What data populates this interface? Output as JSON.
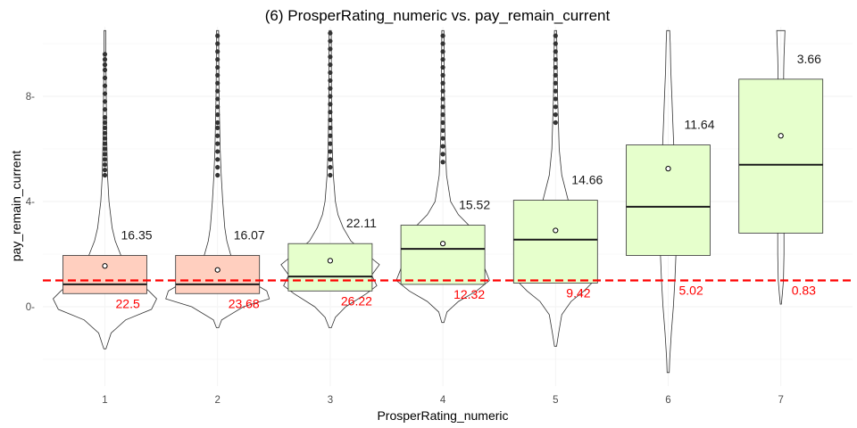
{
  "chart_data": {
    "type": "box",
    "title": "(6) ProsperRating_numeric vs. pay_remain_current",
    "xlabel": "ProsperRating_numeric",
    "ylabel": "pay_remain_current",
    "categories": [
      "1",
      "2",
      "3",
      "4",
      "5",
      "6",
      "7"
    ],
    "ylim": [
      -3.9,
      10.5
    ],
    "y_ticks": [
      0,
      4,
      8
    ],
    "y_tick_labels": [
      "0-",
      "4-",
      "8-"
    ],
    "reference_line": {
      "y": 1.0,
      "color": "#ff0000",
      "style": "dashed"
    },
    "colors": {
      "below_ref": "#ffcfbf",
      "above_ref": "#e6ffcc",
      "text_top": "#1a1a1a",
      "text_bottom": "#ff0000"
    },
    "boxes": [
      {
        "x": "1",
        "q1": 0.5,
        "median": 0.85,
        "q3": 1.95,
        "mean": 1.55,
        "fill": "below_ref",
        "top_label": "16.35",
        "bottom_label": "22.5",
        "violin": [
          [
            -1.6,
            0.02
          ],
          [
            -1.0,
            0.12
          ],
          [
            -0.5,
            0.4
          ],
          [
            -0.1,
            0.9
          ],
          [
            0.3,
            1.0
          ],
          [
            0.6,
            0.85
          ],
          [
            1.0,
            0.6
          ],
          [
            1.5,
            0.42
          ],
          [
            2.0,
            0.3
          ],
          [
            2.5,
            0.2
          ],
          [
            3.0,
            0.14
          ],
          [
            4.0,
            0.08
          ],
          [
            5.0,
            0.05
          ],
          [
            6.5,
            0.035
          ],
          [
            8.0,
            0.025
          ],
          [
            9.0,
            0.02
          ],
          [
            10.5,
            0.018
          ]
        ],
        "outliers": [
          5.0,
          5.2,
          5.4,
          5.6,
          5.8,
          6.0,
          6.2,
          6.4,
          6.6,
          6.8,
          7.0,
          7.2,
          7.5,
          7.8,
          8.1,
          8.4,
          8.7,
          9.0,
          9.2,
          9.4,
          9.6
        ]
      },
      {
        "x": "2",
        "q1": 0.5,
        "median": 0.85,
        "q3": 1.95,
        "mean": 1.4,
        "fill": "below_ref",
        "top_label": "16.07",
        "bottom_label": "23.68",
        "violin": [
          [
            -0.8,
            0.02
          ],
          [
            -0.5,
            0.08
          ],
          [
            0.0,
            0.5
          ],
          [
            0.3,
            1.0
          ],
          [
            0.6,
            0.95
          ],
          [
            1.0,
            0.6
          ],
          [
            1.5,
            0.35
          ],
          [
            2.0,
            0.25
          ],
          [
            2.5,
            0.18
          ],
          [
            3.0,
            0.14
          ],
          [
            4.0,
            0.1
          ],
          [
            5.0,
            0.07
          ],
          [
            6.0,
            0.05
          ],
          [
            7.0,
            0.04
          ],
          [
            8.0,
            0.03
          ],
          [
            9.0,
            0.025
          ],
          [
            10.5,
            0.02
          ]
        ],
        "outliers": [
          5.0,
          5.3,
          5.6,
          5.9,
          6.2,
          6.5,
          6.8,
          7.0,
          7.3,
          7.6,
          7.9,
          8.2,
          8.5,
          8.8,
          9.1,
          9.4,
          9.7,
          10.0,
          10.3
        ]
      },
      {
        "x": "3",
        "q1": 0.6,
        "median": 1.15,
        "q3": 2.4,
        "mean": 1.75,
        "fill": "above_ref",
        "top_label": "22.11",
        "bottom_label": "26.22",
        "violin": [
          [
            -0.8,
            0.02
          ],
          [
            -0.4,
            0.1
          ],
          [
            0.0,
            0.3
          ],
          [
            0.5,
            0.7
          ],
          [
            0.8,
            0.9
          ],
          [
            1.2,
            0.8
          ],
          [
            1.6,
            0.95
          ],
          [
            2.0,
            0.7
          ],
          [
            2.5,
            0.4
          ],
          [
            3.0,
            0.25
          ],
          [
            3.5,
            0.15
          ],
          [
            4.0,
            0.1
          ],
          [
            5.0,
            0.06
          ],
          [
            6.0,
            0.04
          ],
          [
            8.0,
            0.025
          ],
          [
            10.5,
            0.02
          ]
        ],
        "outliers": [
          5.0,
          5.3,
          5.6,
          5.9,
          6.2,
          6.5,
          6.8,
          7.1,
          7.4,
          7.7,
          8.0,
          8.3,
          8.6,
          8.9,
          9.2,
          9.5,
          9.8,
          10.1,
          10.4
        ]
      },
      {
        "x": "4",
        "q1": 0.85,
        "median": 2.2,
        "q3": 3.1,
        "mean": 2.4,
        "fill": "above_ref",
        "top_label": "15.52",
        "bottom_label": "12.32",
        "violin": [
          [
            -0.6,
            0.02
          ],
          [
            -0.2,
            0.08
          ],
          [
            0.2,
            0.3
          ],
          [
            0.6,
            0.65
          ],
          [
            1.0,
            0.9
          ],
          [
            1.5,
            0.8
          ],
          [
            2.0,
            0.5
          ],
          [
            2.5,
            0.6
          ],
          [
            3.0,
            0.55
          ],
          [
            3.5,
            0.3
          ],
          [
            4.0,
            0.15
          ],
          [
            5.0,
            0.07
          ],
          [
            6.5,
            0.04
          ],
          [
            8.0,
            0.03
          ],
          [
            10.5,
            0.02
          ]
        ],
        "outliers": [
          5.5,
          5.8,
          6.1,
          6.4,
          6.7,
          7.0,
          7.3,
          7.6,
          7.9,
          8.2,
          8.5,
          8.8,
          9.1,
          9.4,
          9.7,
          10.0,
          10.3
        ]
      },
      {
        "x": "5",
        "q1": 0.9,
        "median": 2.55,
        "q3": 4.05,
        "mean": 2.9,
        "fill": "above_ref",
        "top_label": "14.66",
        "bottom_label": "9.42",
        "violin": [
          [
            -1.5,
            0.02
          ],
          [
            -1.0,
            0.06
          ],
          [
            -0.3,
            0.12
          ],
          [
            0.2,
            0.3
          ],
          [
            0.6,
            0.55
          ],
          [
            1.0,
            0.75
          ],
          [
            1.5,
            0.55
          ],
          [
            2.0,
            0.6
          ],
          [
            2.5,
            0.75
          ],
          [
            3.0,
            0.55
          ],
          [
            3.5,
            0.35
          ],
          [
            4.0,
            0.25
          ],
          [
            5.0,
            0.12
          ],
          [
            6.0,
            0.07
          ],
          [
            8.0,
            0.04
          ],
          [
            10.5,
            0.02
          ]
        ],
        "outliers": [
          7.0,
          7.3,
          7.6,
          7.9,
          8.2,
          8.5,
          8.8,
          9.1,
          9.4,
          9.7,
          10.0,
          10.3
        ]
      },
      {
        "x": "6",
        "q1": 1.95,
        "median": 3.8,
        "q3": 6.15,
        "mean": 5.25,
        "fill": "above_ref",
        "top_label": "11.64",
        "bottom_label": "5.02",
        "violin": [
          [
            -2.5,
            0.02
          ],
          [
            -2.0,
            0.03
          ],
          [
            -1.0,
            0.06
          ],
          [
            0.0,
            0.1
          ],
          [
            1.0,
            0.13
          ],
          [
            2.0,
            0.15
          ],
          [
            3.0,
            0.16
          ],
          [
            4.0,
            0.15
          ],
          [
            5.0,
            0.13
          ],
          [
            6.0,
            0.11
          ],
          [
            7.0,
            0.09
          ],
          [
            8.0,
            0.07
          ],
          [
            9.0,
            0.05
          ],
          [
            10.0,
            0.04
          ],
          [
            10.5,
            0.03
          ]
        ],
        "outliers": []
      },
      {
        "x": "7",
        "q1": 2.8,
        "median": 5.4,
        "q3": 8.65,
        "mean": 6.5,
        "fill": "above_ref",
        "top_label": "3.66",
        "bottom_label": "0.83",
        "violin": [
          [
            0.1,
            0.01
          ],
          [
            0.5,
            0.03
          ],
          [
            1.0,
            0.05
          ],
          [
            2.0,
            0.06
          ],
          [
            3.0,
            0.06
          ],
          [
            4.0,
            0.06
          ],
          [
            5.0,
            0.06
          ],
          [
            6.0,
            0.055
          ],
          [
            7.0,
            0.05
          ],
          [
            8.0,
            0.05
          ],
          [
            9.0,
            0.055
          ],
          [
            9.5,
            0.06
          ],
          [
            10.0,
            0.07
          ],
          [
            10.5,
            0.08
          ]
        ],
        "outliers": []
      }
    ]
  }
}
